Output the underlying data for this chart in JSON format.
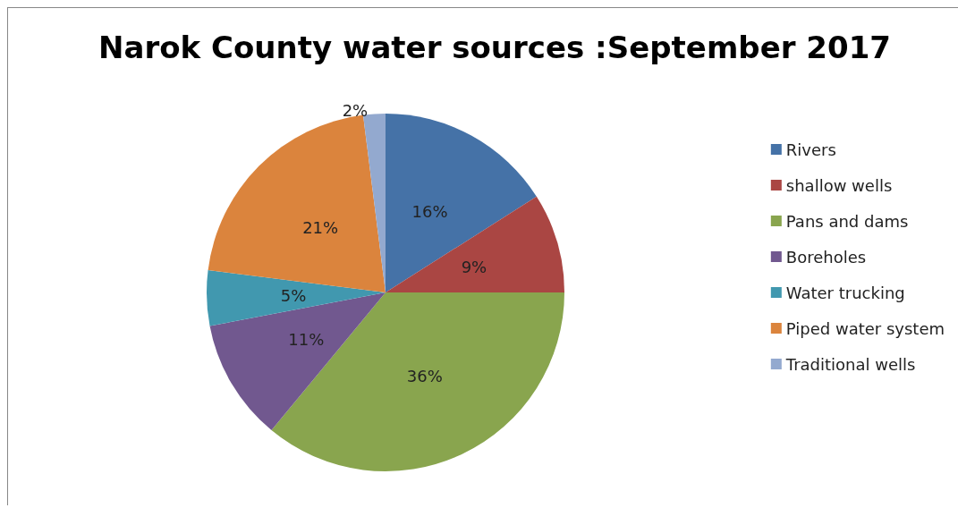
{
  "chart_data": {
    "type": "pie",
    "title": "Narok County water sources :September 2017",
    "categories": [
      "Rivers",
      "shallow wells",
      "Pans and dams",
      "Boreholes",
      "Water trucking",
      "Piped water system",
      "Traditional wells"
    ],
    "values": [
      16,
      9,
      36,
      11,
      5,
      21,
      2
    ],
    "colors": [
      "#4572a7",
      "#aa4643",
      "#89a54e",
      "#71588f",
      "#4198af",
      "#db843d",
      "#93a9cf"
    ],
    "value_labels": [
      "16%",
      "9%",
      "36%",
      "11%",
      "5%",
      "21%",
      "2%"
    ],
    "legend": "right"
  }
}
